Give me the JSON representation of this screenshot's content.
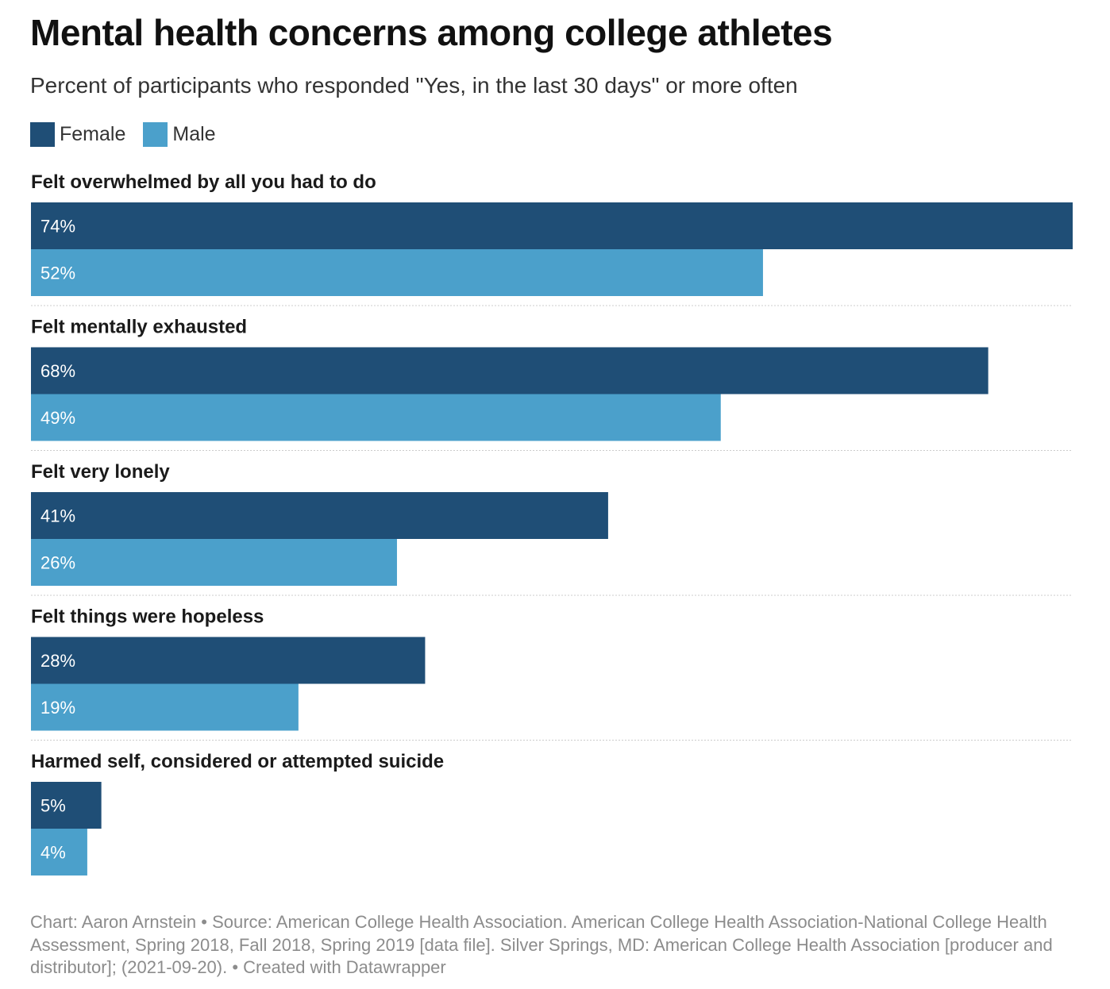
{
  "title": "Mental health concerns among college athletes",
  "subtitle": "Percent of participants who responded \"Yes, in the last 30 days\" or more often",
  "legend": {
    "female": "Female",
    "male": "Male"
  },
  "colors": {
    "female": "#1f4e76",
    "male": "#4ba0cb",
    "label_text": "#ffffff",
    "divider": "#cccccc"
  },
  "footer": {
    "chart_credit": "Chart: Aaron Arnstein",
    "source": "Source: American College Health Association. American College Health Association-National College Health Assessment, Spring 2018, Fall 2018, Spring 2019 [data file]. Silver Springs, MD: American College Health Association [producer and distributor]; (2021-09-20).",
    "created_with": "Created with Datawrapper"
  },
  "chart_data": {
    "type": "bar",
    "orientation": "horizontal",
    "title": "Mental health concerns among college athletes",
    "subtitle": "Percent of participants who responded \"Yes, in the last 30 days\" or more often",
    "xlabel": "",
    "ylabel": "",
    "xlim": [
      0,
      74
    ],
    "value_suffix": "%",
    "legend_position": "top-left",
    "categories": [
      "Felt overwhelmed by all you had to do",
      "Felt mentally exhausted",
      "Felt very lonely",
      "Felt things were hopeless",
      "Harmed self, considered or attempted suicide"
    ],
    "series": [
      {
        "name": "Female",
        "values": [
          74,
          68,
          41,
          28,
          5
        ]
      },
      {
        "name": "Male",
        "values": [
          52,
          49,
          26,
          19,
          4
        ]
      }
    ]
  }
}
